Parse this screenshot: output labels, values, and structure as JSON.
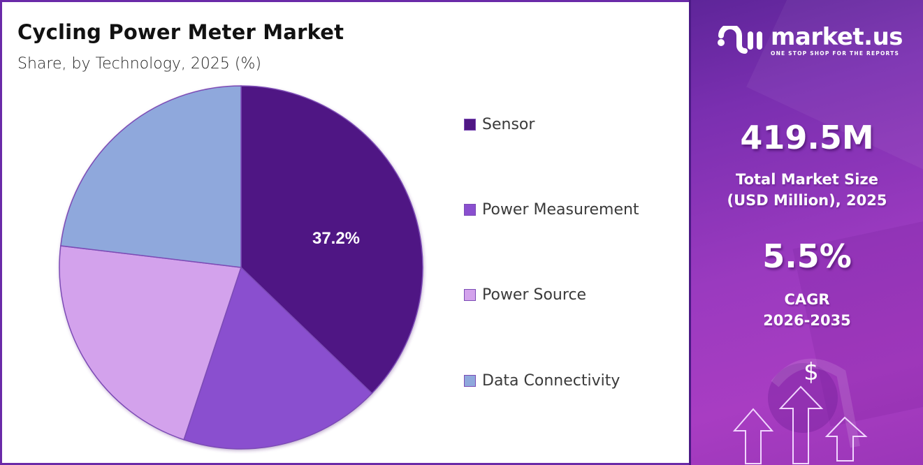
{
  "header": {
    "title": "Cycling Power Meter Market",
    "subtitle": "Share, by Technology, 2025 (%)"
  },
  "chart_data": {
    "type": "pie",
    "title": "Cycling Power Meter Market",
    "subtitle": "Share, by Technology, 2025 (%)",
    "categories": [
      "Sensor",
      "Power Measurement",
      "Power Source",
      "Data Connectivity"
    ],
    "values": [
      37.2,
      17.9,
      21.8,
      23.1
    ],
    "colors": [
      "#4f1784",
      "#8a4fcf",
      "#d3a2ec",
      "#8fa8dc"
    ],
    "start_angle": "12 o'clock",
    "direction": "clockwise",
    "data_labels": [
      {
        "category": "Sensor",
        "text": "37.2%"
      }
    ],
    "legend_position": "right"
  },
  "legend": {
    "items": [
      {
        "label": "Sensor",
        "color": "#4f1784"
      },
      {
        "label": "Power Measurement",
        "color": "#8a4fcf"
      },
      {
        "label": "Power Source",
        "color": "#d3a2ec"
      },
      {
        "label": "Data Connectivity",
        "color": "#8fa8dc"
      }
    ]
  },
  "sidebar": {
    "logo": {
      "name": "market.us",
      "tagline": "ONE STOP SHOP FOR THE REPORTS",
      "icon": "market-us-logo-icon"
    },
    "market_size": {
      "value": "419.5M",
      "label_line1": "Total Market Size",
      "label_line2": "(USD Million), 2025"
    },
    "cagr": {
      "value": "5.5%",
      "label_line1": "CAGR",
      "label_line2": "2026-2035"
    },
    "illustration": {
      "icon": "dollar-growth-arrows-icon",
      "symbol": "$"
    }
  },
  "theme": {
    "border": "#6a2aa8",
    "panel_top": "#5e2599",
    "panel_bottom": "#a83dc2"
  }
}
